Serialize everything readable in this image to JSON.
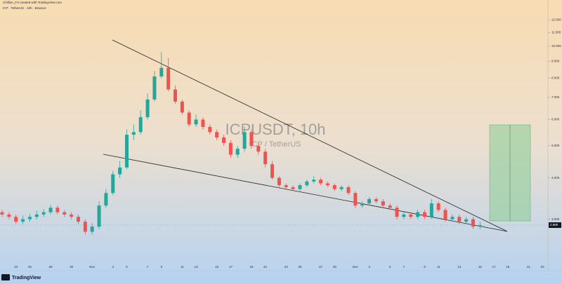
{
  "chart_data": {
    "type": "candlestick",
    "byline": "Chillion_FX created with TradingView.com",
    "header": "ICP · TetherUS · 10h · Binance",
    "title": "ICPUSDT, 10h",
    "subtitle": "ICP / TetherUS",
    "brand": "TradingView",
    "log_scale": true,
    "up_color": "#26a69a",
    "down_color": "#ef5350",
    "ylim": [
      2.16,
      13
    ],
    "yticks": [
      {
        "value": 3,
        "label": "3.000"
      },
      {
        "value": 4,
        "label": "4.000"
      },
      {
        "value": 5,
        "label": "5.000"
      },
      {
        "value": 6,
        "label": "6.000"
      },
      {
        "value": 7,
        "label": "7.000"
      },
      {
        "value": 8,
        "label": "8.000"
      },
      {
        "value": 9,
        "label": "9.000"
      },
      {
        "value": 10,
        "label": "10.000"
      },
      {
        "value": 11,
        "label": "11.000"
      },
      {
        "value": 12,
        "label": "12.000"
      }
    ],
    "last_price": {
      "value": 2.88,
      "label": "2.880"
    },
    "categories": [
      null,
      null,
      "23",
      null,
      "25",
      null,
      null,
      "28",
      null,
      null,
      "30",
      null,
      null,
      "Nov",
      null,
      null,
      "3",
      null,
      "5",
      null,
      null,
      "7",
      null,
      "9",
      null,
      null,
      "11",
      null,
      "13",
      null,
      null,
      "15",
      null,
      "17",
      null,
      null,
      "19",
      null,
      "21",
      null,
      null,
      "23",
      null,
      "25",
      null,
      null,
      "27",
      null,
      "29",
      null,
      null,
      "Dec",
      null,
      "3",
      null,
      null,
      "5",
      null,
      "7",
      null,
      null,
      "9",
      null,
      "11",
      null,
      null,
      "13",
      null,
      null,
      "15",
      null,
      "17",
      null,
      "19",
      null,
      null,
      "21",
      null,
      "23",
      null
    ],
    "open": [
      3.15,
      3.1,
      3.05,
      2.95,
      3.0,
      3.05,
      3.1,
      3.15,
      3.25,
      3.15,
      3.1,
      3.05,
      2.95,
      2.75,
      2.85,
      3.3,
      3.6,
      4.1,
      4.3,
      5.4,
      5.5,
      6.1,
      6.9,
      8.1,
      8.6,
      7.4,
      6.8,
      6.3,
      5.8,
      6.0,
      5.7,
      5.5,
      5.3,
      5.1,
      4.7,
      4.9,
      5.5,
      5.0,
      4.8,
      4.4,
      4.0,
      3.8,
      3.75,
      3.7,
      3.8,
      3.9,
      3.95,
      3.85,
      3.8,
      3.7,
      3.75,
      3.6,
      3.3,
      3.35,
      3.45,
      3.4,
      3.3,
      3.25,
      3.05,
      3.1,
      3.05,
      3.15,
      3.05,
      3.35,
      3.2,
      3.0,
      3.05,
      2.95,
      3.0,
      2.85,
      null,
      null,
      null,
      null,
      null,
      null,
      null,
      null,
      null,
      null
    ],
    "high": [
      3.2,
      3.15,
      3.1,
      3.08,
      3.12,
      3.18,
      3.22,
      3.32,
      3.3,
      3.2,
      3.15,
      3.1,
      3.0,
      2.92,
      3.4,
      3.7,
      4.2,
      4.5,
      5.6,
      5.8,
      6.4,
      7.2,
      8.4,
      9.6,
      9.2,
      7.6,
      6.9,
      6.4,
      6.2,
      6.1,
      5.8,
      5.6,
      5.4,
      5.2,
      5.0,
      5.7,
      5.6,
      5.1,
      4.9,
      4.5,
      4.05,
      3.85,
      3.8,
      3.85,
      3.95,
      4.05,
      4.0,
      3.9,
      3.85,
      3.8,
      3.8,
      3.65,
      3.4,
      3.5,
      3.5,
      3.45,
      3.35,
      3.3,
      3.15,
      3.15,
      3.2,
      3.2,
      3.45,
      3.4,
      3.25,
      3.1,
      3.1,
      3.05,
      3.05,
      2.95,
      null,
      null,
      null,
      null,
      null,
      null,
      null,
      null,
      null,
      null
    ],
    "low": [
      3.05,
      3.0,
      2.9,
      2.9,
      2.95,
      3.0,
      3.05,
      3.1,
      3.1,
      3.05,
      3.0,
      2.9,
      2.7,
      2.7,
      2.8,
      3.25,
      3.55,
      4.0,
      4.25,
      5.2,
      5.4,
      6.0,
      6.8,
      8.0,
      7.3,
      6.7,
      6.2,
      5.7,
      5.7,
      5.6,
      5.4,
      5.2,
      5.0,
      4.6,
      4.6,
      4.8,
      4.9,
      4.7,
      4.3,
      3.95,
      3.75,
      3.7,
      3.65,
      3.65,
      3.75,
      3.85,
      3.8,
      3.75,
      3.65,
      3.65,
      3.55,
      3.25,
      3.25,
      3.3,
      3.35,
      3.25,
      3.2,
      3.0,
      3.0,
      3.0,
      3.0,
      3.0,
      3.0,
      3.15,
      2.95,
      2.95,
      2.9,
      2.9,
      2.8,
      2.8,
      null,
      null,
      null,
      null,
      null,
      null,
      null,
      null,
      null,
      null
    ],
    "close": [
      3.1,
      3.05,
      2.95,
      3.0,
      3.05,
      3.1,
      3.15,
      3.25,
      3.15,
      3.1,
      3.05,
      2.95,
      2.75,
      2.85,
      3.3,
      3.6,
      4.1,
      4.3,
      5.4,
      5.5,
      6.1,
      6.9,
      8.1,
      8.6,
      7.4,
      6.8,
      6.3,
      5.8,
      6.0,
      5.7,
      5.5,
      5.3,
      5.1,
      4.7,
      4.9,
      5.5,
      5.0,
      4.8,
      4.4,
      4.0,
      3.8,
      3.75,
      3.7,
      3.8,
      3.9,
      3.95,
      3.85,
      3.8,
      3.7,
      3.75,
      3.6,
      3.3,
      3.35,
      3.45,
      3.4,
      3.3,
      3.25,
      3.05,
      3.1,
      3.05,
      3.15,
      3.05,
      3.35,
      3.2,
      3.0,
      3.05,
      2.95,
      3.0,
      2.85,
      2.88,
      null,
      null,
      null,
      null,
      null,
      null,
      null,
      null,
      null,
      null
    ]
  }
}
